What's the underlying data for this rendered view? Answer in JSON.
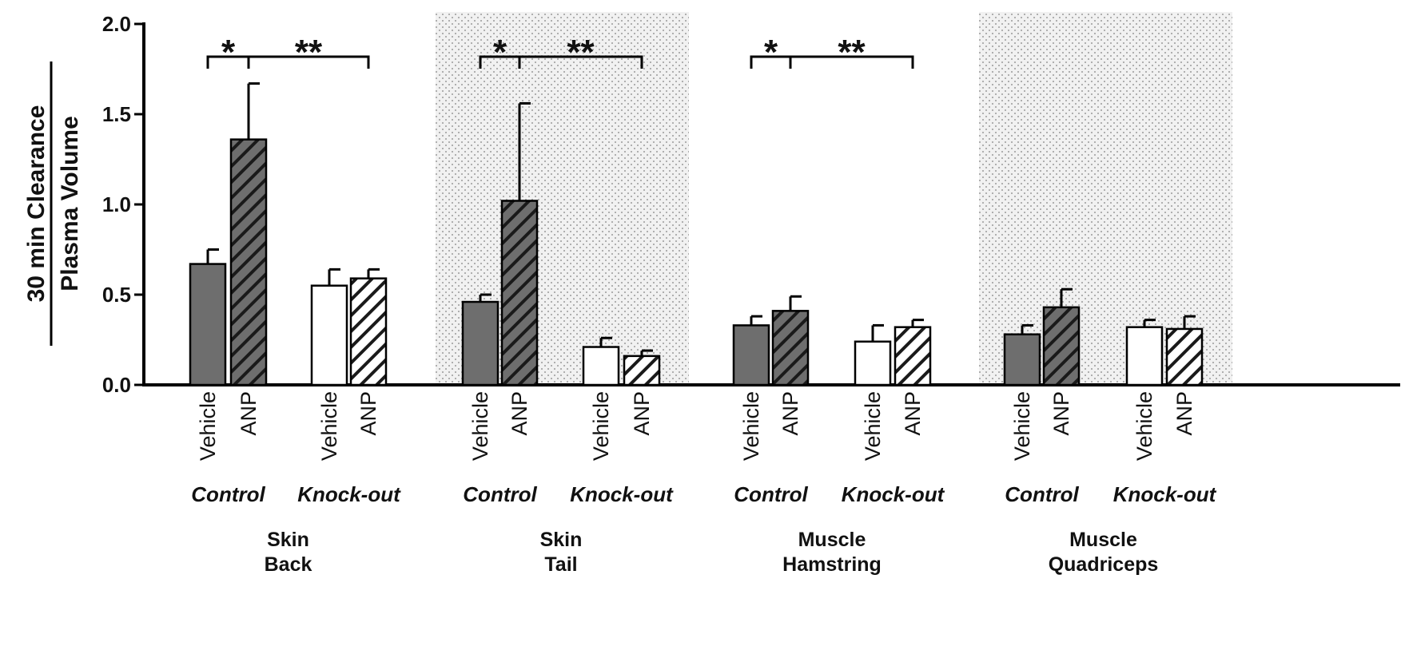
{
  "chart_data": {
    "type": "bar",
    "ylabel_numerator": "30 min Clearance",
    "ylabel_denominator": "Plasma Volume",
    "ylim": [
      0,
      2.0
    ],
    "yticks": [
      "0.0",
      "0.5",
      "1.0",
      "1.5",
      "2.0"
    ],
    "colors": {
      "control": "#6e6e6e",
      "knockout": "#ffffff",
      "hatch_control": "#1a1a1a",
      "hatch_knockout": "#1a1a1a",
      "shade": "#efefef",
      "axis": "#000000"
    },
    "panels": [
      {
        "tissue_line1": "Skin",
        "tissue_line2": "Back",
        "shaded": false,
        "groups": [
          {
            "label": "Control",
            "bars": [
              {
                "treatment": "Vehicle",
                "value": 0.67,
                "error": 0.08
              },
              {
                "treatment": "ANP",
                "value": 1.36,
                "error": 0.31
              }
            ]
          },
          {
            "label": "Knock-out",
            "bars": [
              {
                "treatment": "Vehicle",
                "value": 0.55,
                "error": 0.09
              },
              {
                "treatment": "ANP",
                "value": 0.59,
                "error": 0.05
              }
            ]
          }
        ],
        "significance": [
          {
            "label": "*",
            "from_bar": 0,
            "to_bar": 1
          },
          {
            "label": "**",
            "from_bar": 1,
            "to_bar": 3
          }
        ]
      },
      {
        "tissue_line1": "Skin",
        "tissue_line2": "Tail",
        "shaded": true,
        "groups": [
          {
            "label": "Control",
            "bars": [
              {
                "treatment": "Vehicle",
                "value": 0.46,
                "error": 0.04
              },
              {
                "treatment": "ANP",
                "value": 1.02,
                "error": 0.54
              }
            ]
          },
          {
            "label": "Knock-out",
            "bars": [
              {
                "treatment": "Vehicle",
                "value": 0.21,
                "error": 0.05
              },
              {
                "treatment": "ANP",
                "value": 0.16,
                "error": 0.03
              }
            ]
          }
        ],
        "significance": [
          {
            "label": "*",
            "from_bar": 0,
            "to_bar": 1
          },
          {
            "label": "**",
            "from_bar": 1,
            "to_bar": 3
          }
        ]
      },
      {
        "tissue_line1": "Muscle",
        "tissue_line2": "Hamstring",
        "shaded": false,
        "groups": [
          {
            "label": "Control",
            "bars": [
              {
                "treatment": "Vehicle",
                "value": 0.33,
                "error": 0.05
              },
              {
                "treatment": "ANP",
                "value": 0.41,
                "error": 0.08
              }
            ]
          },
          {
            "label": "Knock-out",
            "bars": [
              {
                "treatment": "Vehicle",
                "value": 0.24,
                "error": 0.09
              },
              {
                "treatment": "ANP",
                "value": 0.32,
                "error": 0.04
              }
            ]
          }
        ],
        "significance": [
          {
            "label": "*",
            "from_bar": 0,
            "to_bar": 1
          },
          {
            "label": "**",
            "from_bar": 1,
            "to_bar": 3
          }
        ]
      },
      {
        "tissue_line1": "Muscle",
        "tissue_line2": "Quadriceps",
        "shaded": true,
        "groups": [
          {
            "label": "Control",
            "bars": [
              {
                "treatment": "Vehicle",
                "value": 0.28,
                "error": 0.05
              },
              {
                "treatment": "ANP",
                "value": 0.43,
                "error": 0.1
              }
            ]
          },
          {
            "label": "Knock-out",
            "bars": [
              {
                "treatment": "Vehicle",
                "value": 0.32,
                "error": 0.04
              },
              {
                "treatment": "ANP",
                "value": 0.31,
                "error": 0.07
              }
            ]
          }
        ],
        "significance": []
      }
    ]
  }
}
